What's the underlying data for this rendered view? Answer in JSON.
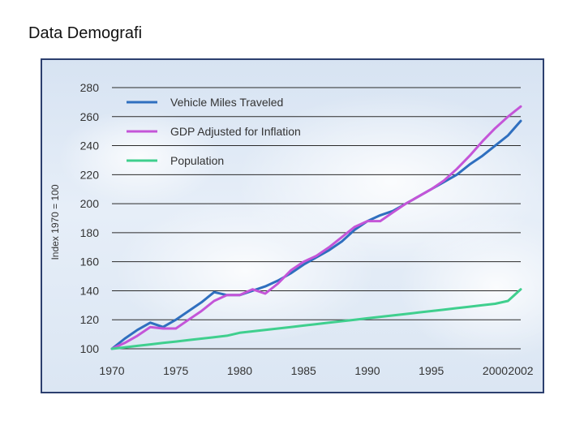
{
  "slide": {
    "title": "Data Demografi"
  },
  "chart_data": {
    "type": "line",
    "title": "",
    "xlabel": "",
    "ylabel": "Index 1970 = 100",
    "ylim": [
      100,
      280
    ],
    "xlim": [
      1970,
      2002
    ],
    "yticks": [
      100,
      120,
      140,
      160,
      180,
      200,
      220,
      240,
      260,
      280
    ],
    "xticks": [
      "1970",
      "1975",
      "1980",
      "1985",
      "1990",
      "1995",
      "2000",
      "2002"
    ],
    "x": [
      1970,
      1971,
      1972,
      1973,
      1974,
      1975,
      1976,
      1977,
      1978,
      1979,
      1980,
      1981,
      1982,
      1983,
      1984,
      1985,
      1986,
      1987,
      1988,
      1989,
      1990,
      1991,
      1992,
      1993,
      1994,
      1995,
      1996,
      1997,
      1998,
      1999,
      2000,
      2001,
      2002
    ],
    "series": [
      {
        "name": "Vehicle Miles Traveled",
        "color": "#2f6fbf",
        "values": [
          100,
          107,
          113,
          118,
          115,
          120,
          126,
          132,
          139,
          137,
          137,
          140,
          143,
          147,
          152,
          158,
          163,
          168,
          174,
          182,
          188,
          192,
          195,
          200,
          205,
          210,
          215,
          220,
          227,
          233,
          240,
          247,
          257
        ]
      },
      {
        "name": "GDP Adjusted for Inflation",
        "color": "#c455d8",
        "values": [
          100,
          104,
          109,
          115,
          114,
          114,
          120,
          126,
          133,
          137,
          137,
          141,
          138,
          145,
          154,
          160,
          164,
          170,
          177,
          184,
          188,
          188,
          194,
          200,
          205,
          210,
          216,
          224,
          233,
          243,
          252,
          260,
          267
        ]
      },
      {
        "name": "Population",
        "color": "#3fcf8e",
        "values": [
          100,
          101,
          102,
          103,
          104,
          105,
          106,
          107,
          108,
          109,
          111,
          112,
          113,
          114,
          115,
          116,
          117,
          118,
          119,
          120,
          121,
          122,
          123,
          124,
          125,
          126,
          127,
          128,
          129,
          130,
          131,
          133,
          141
        ]
      }
    ],
    "legend": "top-left",
    "grid": true
  }
}
